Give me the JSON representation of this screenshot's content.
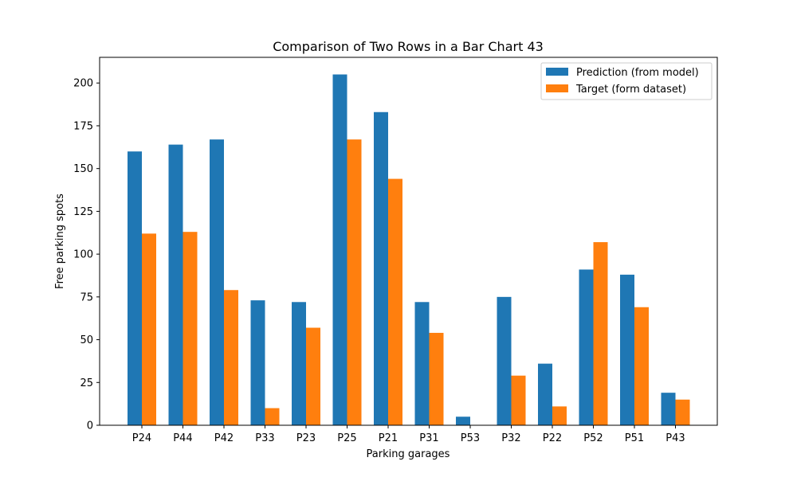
{
  "chart_data": {
    "type": "bar",
    "title": "Comparison of Two Rows in a Bar Chart 43",
    "xlabel": "Parking garages",
    "ylabel": "Free parking spots",
    "categories": [
      "P24",
      "P44",
      "P42",
      "P33",
      "P23",
      "P25",
      "P21",
      "P31",
      "P53",
      "P32",
      "P22",
      "P52",
      "P51",
      "P43"
    ],
    "series": [
      {
        "name": "Prediction (from model)",
        "color": "#1f77b4",
        "values": [
          160,
          164,
          167,
          73,
          72,
          205,
          183,
          72,
          5,
          75,
          36,
          91,
          88,
          19
        ]
      },
      {
        "name": "Target (form dataset)",
        "color": "#ff7f0e",
        "values": [
          112,
          113,
          79,
          10,
          57,
          167,
          144,
          54,
          0,
          29,
          11,
          107,
          69,
          15
        ]
      }
    ],
    "ylim": [
      0,
      215
    ],
    "yticks": [
      0,
      25,
      50,
      75,
      100,
      125,
      150,
      175,
      200
    ],
    "grid": false,
    "legend_position": "top-right"
  }
}
